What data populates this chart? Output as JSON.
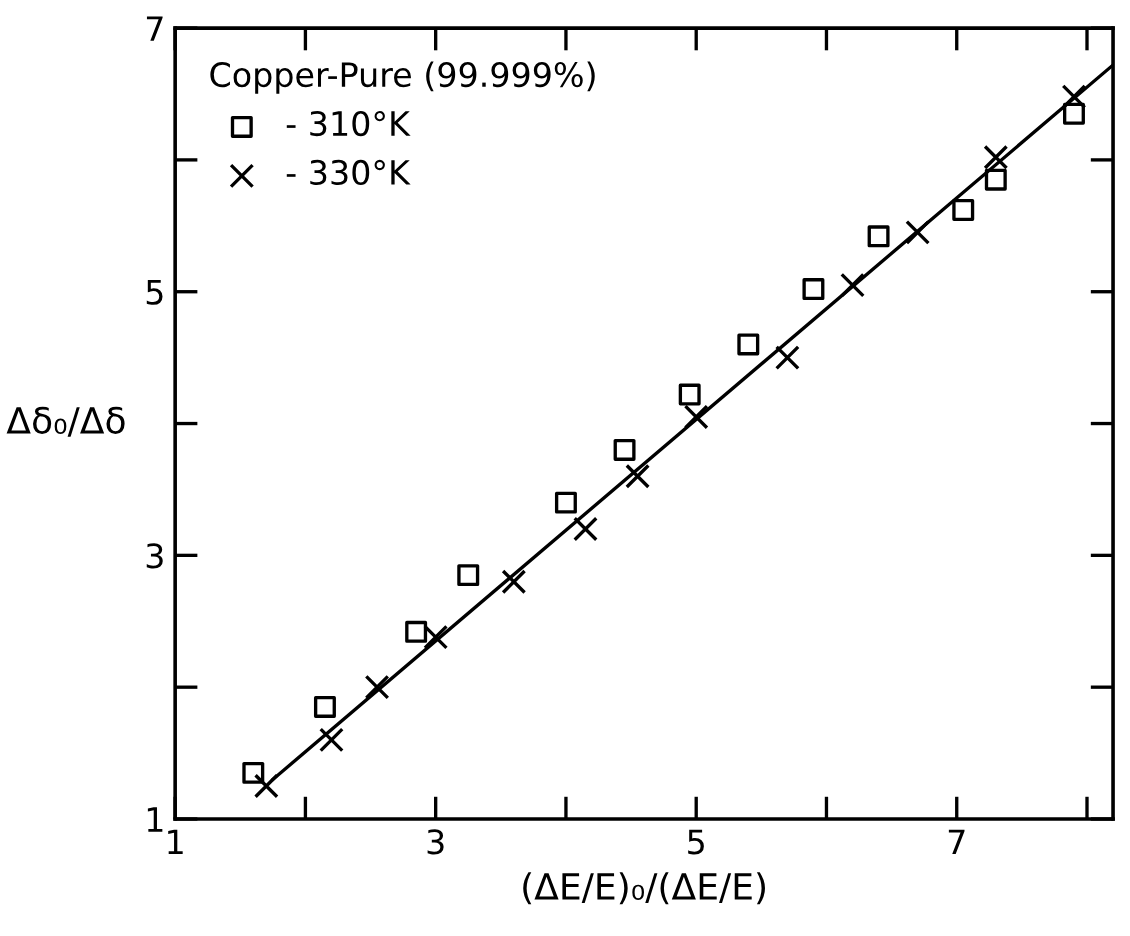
{
  "chart_data": {
    "type": "scatter",
    "xlabel": "(ΔE/E)₀/(ΔE/E)",
    "ylabel": "Δδ₀/Δδ",
    "legend_title": "Copper-Pure (99.999%)",
    "xlim": [
      1,
      8.2
    ],
    "ylim": [
      1,
      7
    ],
    "xticks": [
      1,
      {
        "value": 2,
        "label": null
      },
      3,
      {
        "value": 4,
        "label": null
      },
      5,
      {
        "value": 6,
        "label": null
      },
      7,
      {
        "value": 8,
        "label": null
      }
    ],
    "yticks": [
      1,
      {
        "value": 2,
        "label": null
      },
      3,
      {
        "value": 4,
        "label": null
      },
      5,
      {
        "value": 6,
        "label": null
      },
      7
    ],
    "grid": false,
    "legend": "top left",
    "series": [
      {
        "name": "- 310°K",
        "color": "#000000",
        "marker": "square",
        "x": [
          1.6,
          2.15,
          2.85,
          3.25,
          4.0,
          4.45,
          4.95,
          5.4,
          5.9,
          6.4,
          7.05,
          7.3,
          7.9
        ],
        "values": [
          1.35,
          1.85,
          2.42,
          2.85,
          3.4,
          3.8,
          4.22,
          4.6,
          5.02,
          5.42,
          5.62,
          5.85,
          6.35
        ]
      },
      {
        "name": "- 330°K",
        "color": "#000000",
        "marker": "cross",
        "x": [
          1.7,
          2.2,
          2.55,
          3.0,
          3.6,
          4.15,
          4.55,
          5.0,
          5.7,
          6.2,
          6.7,
          7.3,
          7.9
        ],
        "values": [
          1.25,
          1.6,
          2.0,
          2.38,
          2.8,
          3.2,
          3.6,
          4.05,
          4.5,
          5.05,
          5.45,
          6.02,
          6.48
        ]
      },
      {
        "type": "line",
        "color": "#000000",
        "marker": "none",
        "line_style": "solid",
        "x": [
          1.75,
          8.2
        ],
        "values": [
          1.3,
          6.72
        ]
      }
    ]
  }
}
